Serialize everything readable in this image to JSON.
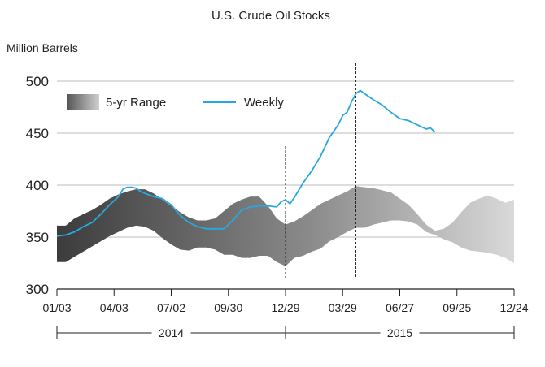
{
  "chart_data": {
    "type": "area",
    "title": "U.S. Crude Oil Stocks",
    "ylabel": "Million Barrels",
    "xlabel": "",
    "ylim": [
      300,
      500
    ],
    "yticks": [
      300,
      350,
      400,
      450,
      500
    ],
    "xlim": [
      0,
      104
    ],
    "xticks": [
      {
        "x": 0,
        "label": "01/03"
      },
      {
        "x": 13,
        "label": "04/03"
      },
      {
        "x": 26,
        "label": "07/02"
      },
      {
        "x": 39,
        "label": "09/30"
      },
      {
        "x": 52,
        "label": "12/29"
      },
      {
        "x": 65,
        "label": "03/29"
      },
      {
        "x": 78,
        "label": "06/27"
      },
      {
        "x": 91,
        "label": "09/25"
      },
      {
        "x": 104,
        "label": "12/24"
      }
    ],
    "year_brackets": [
      {
        "label": "2014",
        "x_start": 0,
        "x_end": 52
      },
      {
        "label": "2015",
        "x_start": 52,
        "x_end": 104
      }
    ],
    "vertical_markers": [
      52,
      68
    ],
    "grid": true,
    "legend": {
      "placement": "top-left",
      "entries": [
        "5-yr Range",
        "Weekly"
      ]
    },
    "colors": {
      "weekly": "#29a8df",
      "range_dark": "#3c3c3c",
      "range_light": "#d9d9d9",
      "grid": "#bbbbbb"
    },
    "series": [
      {
        "name": "5-yr Range",
        "kind": "band",
        "x": [
          0,
          2,
          4,
          6,
          8,
          10,
          12,
          14,
          16,
          18,
          20,
          22,
          24,
          26,
          28,
          30,
          32,
          34,
          36,
          38,
          40,
          42,
          44,
          46,
          48,
          50,
          52,
          54,
          56,
          58,
          60,
          62,
          64,
          66,
          68,
          70,
          72,
          74,
          76,
          78,
          80,
          82,
          84,
          86,
          88,
          90,
          92,
          94,
          96,
          98,
          100,
          102,
          104
        ],
        "lower": [
          326,
          326,
          331,
          336,
          341,
          346,
          351,
          355,
          359,
          361,
          360,
          356,
          349,
          343,
          338,
          337,
          340,
          340,
          338,
          333,
          333,
          330,
          330,
          332,
          332,
          326,
          322,
          330,
          332,
          336,
          339,
          346,
          350,
          355,
          359,
          359,
          362,
          364,
          366,
          366,
          365,
          362,
          355,
          352,
          348,
          345,
          340,
          337,
          336,
          335,
          333,
          330,
          325
        ],
        "upper": [
          361,
          361,
          368,
          372,
          376,
          381,
          387,
          391,
          394,
          396,
          396,
          392,
          386,
          380,
          374,
          369,
          366,
          366,
          368,
          375,
          382,
          386,
          389,
          389,
          380,
          368,
          362,
          365,
          370,
          376,
          382,
          386,
          390,
          394,
          399,
          398,
          397,
          395,
          393,
          387,
          381,
          372,
          362,
          356,
          358,
          364,
          374,
          383,
          387,
          390,
          387,
          383,
          386
        ]
      },
      {
        "name": "Weekly",
        "kind": "line",
        "x": [
          0,
          2,
          4,
          6,
          8,
          10,
          12,
          14,
          15,
          16,
          17,
          18,
          19,
          20,
          22,
          24,
          26,
          28,
          30,
          32,
          34,
          36,
          38,
          40,
          42,
          44,
          46,
          48,
          50,
          51,
          52,
          53,
          54,
          56,
          58,
          60,
          62,
          64,
          65,
          66,
          67,
          68,
          69,
          70,
          72,
          74,
          76,
          78,
          80,
          82,
          84,
          85,
          86
        ],
        "y": [
          351,
          352,
          355,
          360,
          364,
          372,
          381,
          389,
          396,
          398,
          398,
          397,
          394,
          392,
          389,
          387,
          381,
          371,
          364,
          360,
          358,
          358,
          358,
          366,
          376,
          379,
          380,
          380,
          379,
          384,
          386,
          382,
          388,
          402,
          414,
          428,
          446,
          458,
          467,
          470,
          480,
          488,
          491,
          488,
          482,
          477,
          470,
          464,
          462,
          458,
          454,
          455,
          451
        ]
      }
    ]
  }
}
